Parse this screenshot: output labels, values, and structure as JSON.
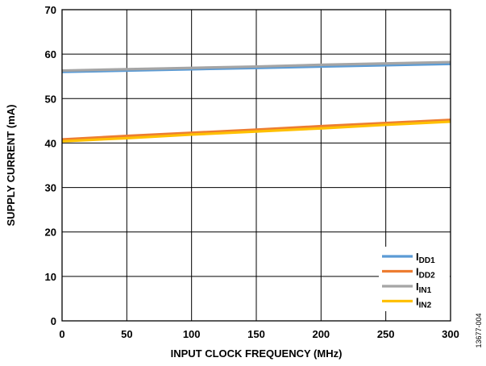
{
  "chart_data": {
    "type": "line",
    "title": "",
    "xlabel": "INPUT CLOCK FREQUENCY (MHz)",
    "ylabel": "SUPPLY CURRENT (mA)",
    "xlim": [
      0,
      300
    ],
    "ylim": [
      0,
      70
    ],
    "xticks": [
      0,
      50,
      100,
      150,
      200,
      250,
      300
    ],
    "yticks": [
      0,
      10,
      20,
      30,
      40,
      50,
      60,
      70
    ],
    "grid": true,
    "legend_position": "bottom-right",
    "x": [
      0,
      50,
      100,
      150,
      200,
      250,
      300
    ],
    "series": [
      {
        "name": "IDD1",
        "name_main": "I",
        "name_sub": "DD1",
        "color": "#5b9bd5",
        "values": [
          56.0,
          56.3,
          56.6,
          56.9,
          57.2,
          57.5,
          57.8
        ]
      },
      {
        "name": "IDD2",
        "name_main": "I",
        "name_sub": "DD2",
        "color": "#ed7d31",
        "values": [
          40.8,
          41.6,
          42.3,
          43.0,
          43.8,
          44.5,
          45.2
        ]
      },
      {
        "name": "IIN1",
        "name_main": "I",
        "name_sub": "IN1",
        "color": "#a5a5a5",
        "values": [
          56.3,
          56.6,
          56.9,
          57.2,
          57.6,
          57.9,
          58.2
        ]
      },
      {
        "name": "IIN2",
        "name_main": "I",
        "name_sub": "IN2",
        "color": "#ffc000",
        "values": [
          40.4,
          41.1,
          41.9,
          42.6,
          43.3,
          44.1,
          44.8
        ]
      }
    ]
  },
  "figure_id": "13677-004"
}
